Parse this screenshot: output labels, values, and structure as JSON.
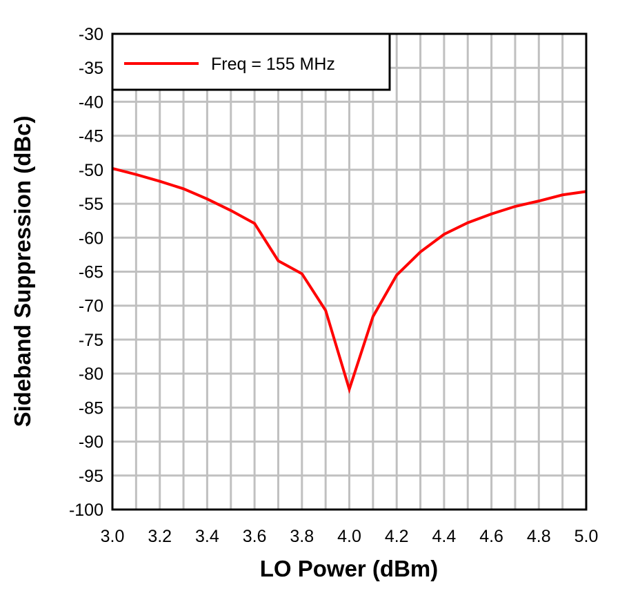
{
  "chart_data": {
    "type": "line",
    "title": "",
    "xlabel": "LO Power (dBm)",
    "ylabel": "Sideband Suppression (dBc)",
    "xlim": [
      3.0,
      5.0
    ],
    "ylim": [
      -100,
      -30
    ],
    "xticks": [
      "3.0",
      "3.2",
      "3.4",
      "3.6",
      "3.8",
      "4.0",
      "4.2",
      "4.4",
      "4.6",
      "4.8",
      "5.0"
    ],
    "yticks": [
      "-30",
      "-35",
      "-40",
      "-45",
      "-50",
      "-55",
      "-60",
      "-65",
      "-70",
      "-75",
      "-80",
      "-85",
      "-90",
      "-95",
      "-100"
    ],
    "x_minor_step": 0.1,
    "grid": true,
    "legend_position": "top-left",
    "series": [
      {
        "name": "Freq = 155 MHz",
        "color": "#ff0000",
        "x": [
          3.0,
          3.1,
          3.2,
          3.3,
          3.4,
          3.5,
          3.6,
          3.7,
          3.8,
          3.9,
          4.0,
          4.1,
          4.2,
          4.3,
          4.4,
          4.5,
          4.6,
          4.7,
          4.8,
          4.9,
          5.0
        ],
        "y": [
          -49.8,
          -50.7,
          -51.7,
          -52.8,
          -54.3,
          -56.0,
          -57.9,
          -63.4,
          -65.3,
          -70.7,
          -82.3,
          -71.6,
          -65.5,
          -62.1,
          -59.5,
          -57.8,
          -56.5,
          -55.4,
          -54.6,
          -53.7,
          -53.2
        ]
      }
    ]
  }
}
